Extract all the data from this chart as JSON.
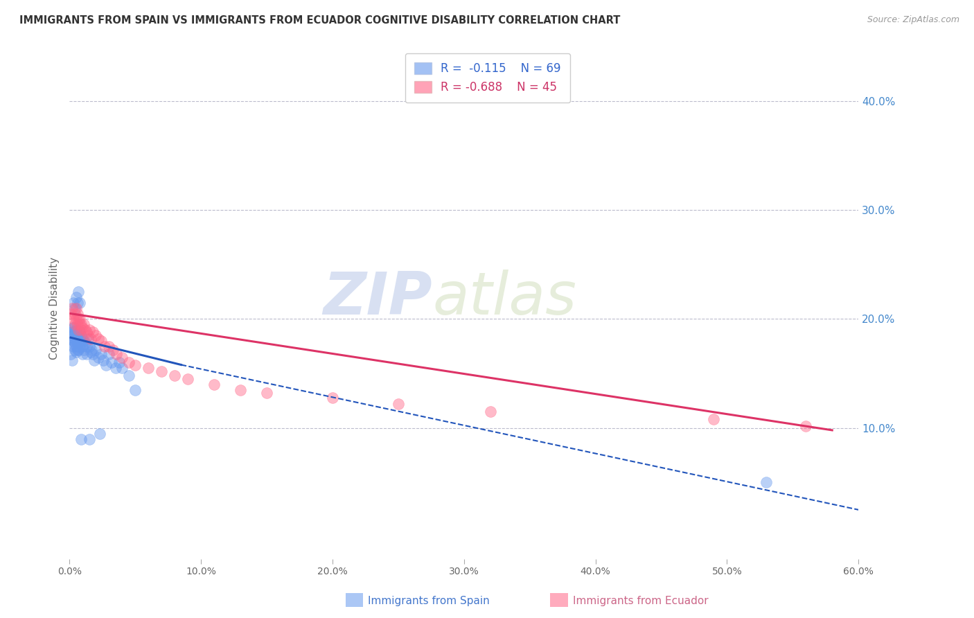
{
  "title": "IMMIGRANTS FROM SPAIN VS IMMIGRANTS FROM ECUADOR COGNITIVE DISABILITY CORRELATION CHART",
  "source": "Source: ZipAtlas.com",
  "ylabel": "Cognitive Disability",
  "xlim": [
    0.0,
    0.6
  ],
  "ylim": [
    -0.02,
    0.44
  ],
  "xticks": [
    0.0,
    0.1,
    0.2,
    0.3,
    0.4,
    0.5,
    0.6
  ],
  "xtick_labels": [
    "0.0%",
    "10.0%",
    "20.0%",
    "30.0%",
    "40.0%",
    "50.0%",
    "60.0%"
  ],
  "yticks_right": [
    0.1,
    0.2,
    0.3,
    0.4
  ],
  "ytick_labels_right": [
    "10.0%",
    "20.0%",
    "30.0%",
    "40.0%"
  ],
  "grid_color": "#bbbbcc",
  "background_color": "#ffffff",
  "spain_color": "#6699ee",
  "ecuador_color": "#ff6688",
  "spain_R": -0.115,
  "spain_N": 69,
  "ecuador_R": -0.688,
  "ecuador_N": 45,
  "watermark_zip": "ZIP",
  "watermark_atlas": "atlas",
  "spain_scatter_x": [
    0.001,
    0.001,
    0.002,
    0.002,
    0.002,
    0.003,
    0.003,
    0.003,
    0.003,
    0.004,
    0.004,
    0.004,
    0.004,
    0.005,
    0.005,
    0.005,
    0.005,
    0.005,
    0.006,
    0.006,
    0.006,
    0.006,
    0.007,
    0.007,
    0.007,
    0.007,
    0.008,
    0.008,
    0.008,
    0.009,
    0.009,
    0.01,
    0.01,
    0.01,
    0.011,
    0.011,
    0.012,
    0.013,
    0.013,
    0.014,
    0.015,
    0.016,
    0.017,
    0.018,
    0.019,
    0.02,
    0.022,
    0.024,
    0.026,
    0.028,
    0.03,
    0.032,
    0.035,
    0.038,
    0.04,
    0.045,
    0.05,
    0.001,
    0.002,
    0.003,
    0.004,
    0.005,
    0.006,
    0.007,
    0.008,
    0.009,
    0.015,
    0.023,
    0.53
  ],
  "spain_scatter_y": [
    0.19,
    0.182,
    0.188,
    0.178,
    0.192,
    0.185,
    0.18,
    0.175,
    0.192,
    0.188,
    0.182,
    0.178,
    0.172,
    0.19,
    0.185,
    0.18,
    0.175,
    0.17,
    0.188,
    0.183,
    0.178,
    0.172,
    0.185,
    0.182,
    0.178,
    0.172,
    0.188,
    0.18,
    0.174,
    0.185,
    0.18,
    0.182,
    0.175,
    0.168,
    0.18,
    0.172,
    0.178,
    0.175,
    0.168,
    0.182,
    0.175,
    0.17,
    0.172,
    0.168,
    0.162,
    0.172,
    0.165,
    0.168,
    0.162,
    0.158,
    0.168,
    0.16,
    0.155,
    0.16,
    0.155,
    0.148,
    0.135,
    0.168,
    0.162,
    0.215,
    0.21,
    0.22,
    0.215,
    0.225,
    0.215,
    0.09,
    0.09,
    0.095,
    0.05
  ],
  "ecuador_scatter_x": [
    0.001,
    0.002,
    0.003,
    0.004,
    0.004,
    0.005,
    0.005,
    0.006,
    0.006,
    0.007,
    0.007,
    0.008,
    0.008,
    0.009,
    0.009,
    0.01,
    0.011,
    0.012,
    0.013,
    0.014,
    0.015,
    0.016,
    0.018,
    0.02,
    0.022,
    0.024,
    0.027,
    0.03,
    0.033,
    0.036,
    0.04,
    0.045,
    0.05,
    0.06,
    0.07,
    0.08,
    0.09,
    0.11,
    0.13,
    0.15,
    0.2,
    0.25,
    0.32,
    0.49,
    0.56
  ],
  "ecuador_scatter_y": [
    0.205,
    0.21,
    0.2,
    0.205,
    0.195,
    0.21,
    0.2,
    0.205,
    0.195,
    0.2,
    0.19,
    0.2,
    0.195,
    0.195,
    0.19,
    0.192,
    0.195,
    0.19,
    0.188,
    0.185,
    0.19,
    0.182,
    0.188,
    0.185,
    0.182,
    0.18,
    0.175,
    0.175,
    0.172,
    0.168,
    0.165,
    0.16,
    0.158,
    0.155,
    0.152,
    0.148,
    0.145,
    0.14,
    0.135,
    0.132,
    0.128,
    0.122,
    0.115,
    0.108,
    0.102
  ],
  "spain_line_x0": 0.001,
  "spain_line_x_solid_end": 0.085,
  "spain_line_x_dash_end": 0.6,
  "spain_line_y0": 0.183,
  "spain_line_y_solid_end": 0.158,
  "spain_line_y_dash_end": 0.025,
  "ecuador_line_x0": 0.001,
  "ecuador_line_x_end": 0.58,
  "ecuador_line_y0": 0.205,
  "ecuador_line_y_end": 0.098
}
